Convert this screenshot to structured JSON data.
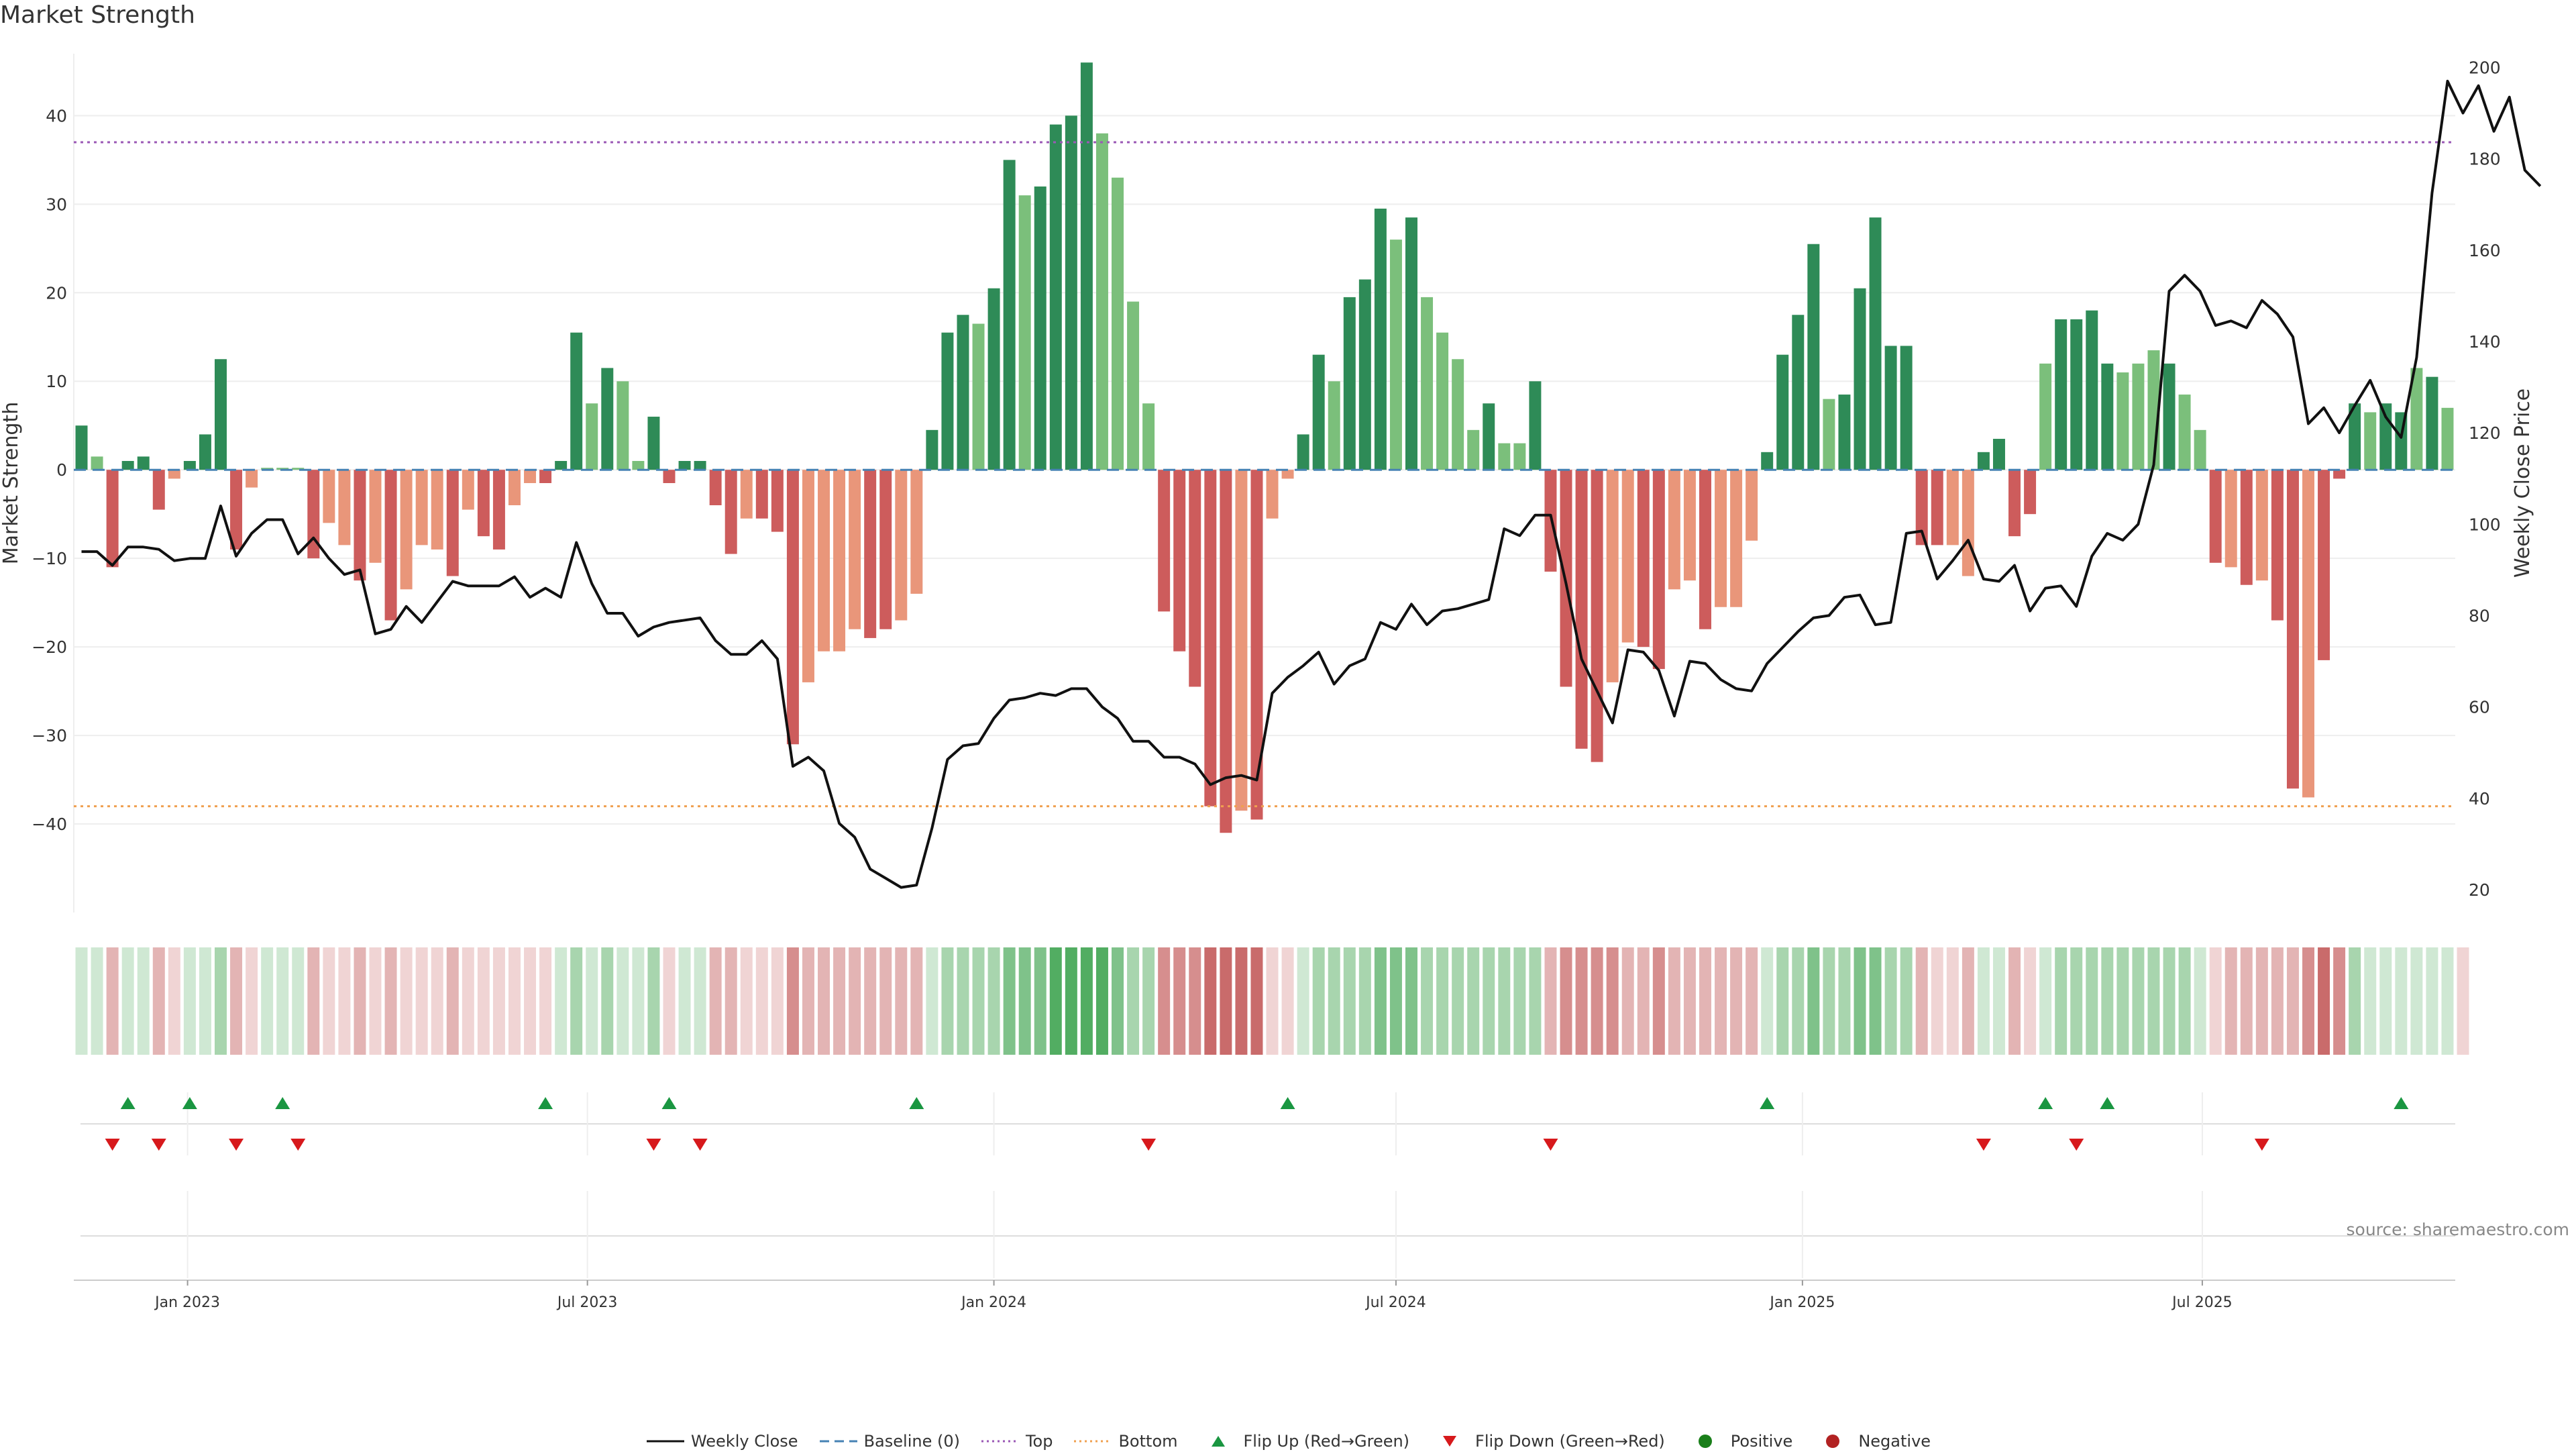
{
  "title": "Market Strength",
  "source": "source: sharemaestro.com",
  "chart_data": {
    "type": "bar",
    "title": "Market Strength",
    "ylabel": "Market Strength",
    "y2label": "Weekly Close Price",
    "ylim": [
      -50,
      47
    ],
    "y2lim": [
      15,
      203
    ],
    "yticks": [
      -40,
      -30,
      -20,
      -10,
      0,
      10,
      20,
      30,
      40
    ],
    "y2ticks": [
      20,
      40,
      60,
      80,
      100,
      120,
      140,
      160,
      180,
      200
    ],
    "x_start": "2022-11-14",
    "x_end": "2025-11-03",
    "x_tick_labels": [
      "Jan 2023",
      "Jul 2023",
      "Jan 2024",
      "Jul 2024",
      "Jan 2025",
      "Jul 2025"
    ],
    "x_tick_dates": [
      "2023-01-01",
      "2023-07-01",
      "2024-01-01",
      "2024-07-01",
      "2025-01-01",
      "2025-07-01"
    ],
    "top_level": 37,
    "bottom_level": -38,
    "baseline": 0,
    "colors": {
      "strong_up": "#2e8b57",
      "weak_up": "#7bbf7b",
      "strong_down": "#cd5c5c",
      "weak_down": "#e9967a",
      "close": "#111111",
      "baseline": "#4682b4",
      "top": "#9b59b6",
      "bottom": "#f0a050",
      "flip_up": "#1a9641",
      "flip_down": "#d7191c",
      "positive": "#1a7f1a",
      "negative": "#b22222"
    },
    "series": [
      {
        "name": "Market Strength",
        "values": [
          5,
          1.5,
          -11,
          1,
          1.5,
          -4.5,
          -1,
          1,
          4,
          12.5,
          -9,
          -2,
          0,
          0,
          0,
          -10,
          -6,
          -8.5,
          -12.5,
          -10.5,
          -17,
          -13.5,
          -8.5,
          -9,
          -12,
          -4.5,
          -7.5,
          -9,
          -4,
          -1.5,
          -1.5,
          1,
          15.5,
          7.5,
          11.5,
          10,
          1,
          6,
          -1.5,
          1,
          1,
          -4,
          -9.5,
          -5.5,
          -5.5,
          -7,
          -31,
          -24,
          -20.5,
          -20.5,
          -18,
          -19,
          -18,
          -17,
          -14,
          4.5,
          15.5,
          17.5,
          16.5,
          20.5,
          35,
          31,
          32,
          39,
          40,
          46,
          38,
          33,
          19,
          7.5,
          -16,
          -20.5,
          -24.5,
          -38,
          -41,
          -38.5,
          -39.5,
          -5.5,
          -1,
          4,
          13,
          10,
          19.5,
          21.5,
          29.5,
          26,
          28.5,
          19.5,
          15.5,
          12.5,
          4.5,
          7.5,
          3,
          3,
          10,
          -11.5,
          -24.5,
          -31.5,
          -33,
          -24,
          -19.5,
          -20,
          -22.5,
          -13.5,
          -12.5,
          -18,
          -15.5,
          -15.5,
          -8,
          2,
          13,
          17.5,
          25.5,
          8,
          8.5,
          20.5,
          28.5,
          14,
          14,
          -8.5,
          -8.5,
          -8.5,
          -12,
          2,
          3.5,
          -7.5,
          -5,
          12,
          17,
          17,
          18,
          12,
          11,
          12,
          13.5,
          12,
          8.5,
          4.5,
          -10.5,
          -11,
          -13,
          -12.5,
          -17,
          -36,
          -37,
          -21.5,
          -1,
          7.5,
          6.5,
          7.5,
          6.5,
          11.5,
          10.5,
          7
        ],
        "styles": [
          "S",
          "W",
          "S",
          "S",
          "S",
          "S",
          "W",
          "S",
          "S",
          "S",
          "S",
          "W",
          "W",
          "W",
          "W",
          "S",
          "W",
          "W",
          "S",
          "W",
          "S",
          "W",
          "W",
          "W",
          "S",
          "W",
          "S",
          "S",
          "W",
          "W",
          "S",
          "S",
          "S",
          "W",
          "S",
          "W",
          "W",
          "S",
          "S",
          "S",
          "S",
          "S",
          "S",
          "W",
          "S",
          "S",
          "S",
          "W",
          "W",
          "W",
          "W",
          "S",
          "S",
          "W",
          "W",
          "S",
          "S",
          "S",
          "W",
          "S",
          "S",
          "W",
          "S",
          "S",
          "S",
          "S",
          "W",
          "W",
          "W",
          "W",
          "S",
          "S",
          "S",
          "S",
          "S",
          "W",
          "S",
          "W",
          "W",
          "S",
          "S",
          "W",
          "S",
          "S",
          "S",
          "W",
          "S",
          "W",
          "W",
          "W",
          "W",
          "S",
          "W",
          "W",
          "S",
          "S",
          "S",
          "S",
          "S",
          "W",
          "W",
          "S",
          "S",
          "W",
          "W",
          "S",
          "W",
          "W",
          "W",
          "S",
          "S",
          "S",
          "S",
          "W",
          "S",
          "S",
          "S",
          "S",
          "S",
          "S",
          "S",
          "W",
          "W",
          "S",
          "S",
          "S",
          "S",
          "W",
          "S",
          "S",
          "S",
          "S",
          "W",
          "W",
          "W",
          "S",
          "W",
          "W",
          "S",
          "W",
          "S",
          "W",
          "S",
          "S",
          "W",
          "S",
          "S",
          "S",
          "W",
          "S",
          "S",
          "W",
          "S",
          "W",
          "S",
          "W",
          "W"
        ]
      },
      {
        "name": "Weekly Close",
        "values": [
          94,
          94,
          91,
          95,
          95,
          94.5,
          92,
          92.5,
          92.5,
          104,
          93,
          98,
          101,
          101,
          93.5,
          97,
          92.5,
          89,
          90,
          76,
          77,
          82,
          78.5,
          83,
          87.5,
          86.5,
          86.5,
          86.5,
          88.5,
          84,
          86,
          84,
          96,
          87,
          80.5,
          80.5,
          75.5,
          77.5,
          78.5,
          79,
          79.5,
          74.5,
          71.5,
          71.5,
          74.5,
          70.5,
          47,
          49,
          46,
          34.5,
          31.5,
          24.5,
          22.5,
          20.5,
          21,
          33.5,
          48.5,
          51.5,
          52,
          57.5,
          61.5,
          62,
          63,
          62.5,
          64,
          64,
          60,
          57.5,
          52.5,
          52.5,
          49,
          49,
          47.5,
          43,
          44.5,
          45,
          44,
          63,
          66.5,
          69,
          72,
          65,
          69,
          70.5,
          78.5,
          77,
          82.5,
          78,
          81,
          81.5,
          82.5,
          83.5,
          99,
          97.5,
          102,
          102,
          87,
          70.5,
          63.5,
          56.5,
          72.5,
          72,
          68,
          58,
          70,
          69.5,
          66,
          64,
          63.5,
          69.5,
          73,
          76.5,
          79.5,
          80,
          84,
          84.5,
          78,
          78.5,
          98,
          98.5,
          88,
          92,
          96.5,
          88,
          87.5,
          91,
          81,
          86,
          86.5,
          82,
          93,
          98,
          96.5,
          100,
          113,
          151,
          154.5,
          151,
          143.5,
          144.5,
          143,
          149,
          146,
          141,
          122,
          125.5,
          120,
          126,
          131.5,
          123.5,
          119,
          136.5,
          172.5,
          197,
          190,
          196,
          186,
          193.5,
          177.5,
          174
        ],
        "type": "line"
      }
    ],
    "heat": [
      1,
      1,
      2,
      1,
      1,
      2,
      1,
      1,
      1,
      2,
      2,
      1,
      1,
      1,
      1,
      2,
      1,
      1,
      2,
      1,
      2,
      1,
      1,
      1,
      2,
      1,
      1,
      1,
      1,
      1,
      1,
      1,
      2,
      1,
      2,
      1,
      1,
      2,
      1,
      1,
      1,
      2,
      2,
      1,
      1,
      1,
      3,
      2,
      2,
      2,
      2,
      2,
      2,
      2,
      2,
      1,
      2,
      2,
      2,
      2,
      3,
      3,
      3,
      4,
      4,
      4,
      4,
      3,
      2,
      2,
      3,
      3,
      3,
      4,
      4,
      4,
      4,
      1,
      1,
      1,
      2,
      2,
      2,
      2,
      3,
      3,
      3,
      2,
      2,
      2,
      2,
      2,
      2,
      2,
      2,
      2,
      3,
      3,
      3,
      3,
      2,
      2,
      3,
      2,
      2,
      2,
      2,
      2,
      2,
      1,
      2,
      2,
      3,
      2,
      2,
      3,
      3,
      2,
      2,
      2,
      1,
      1,
      2,
      1,
      1,
      2,
      1,
      1,
      2,
      2,
      2,
      2,
      2,
      2,
      2,
      2,
      2,
      1,
      1,
      2,
      2,
      2,
      2,
      2,
      3,
      4,
      3,
      2,
      1,
      1,
      1,
      1,
      1,
      1,
      1
    ],
    "flip_up_weeks": [
      3,
      7,
      13,
      30,
      38,
      54,
      78,
      109,
      127,
      131,
      150
    ],
    "flip_down_weeks": [
      2,
      5,
      10,
      14,
      37,
      40,
      69,
      95,
      123,
      129,
      141
    ]
  },
  "legend": [
    {
      "label": "Weekly Close",
      "symbol": "line-solid",
      "color": "#111111"
    },
    {
      "label": "Baseline (0)",
      "symbol": "line-dashed",
      "color": "#4682b4"
    },
    {
      "label": "Top",
      "symbol": "line-dotted",
      "color": "#9b59b6"
    },
    {
      "label": "Bottom",
      "symbol": "line-dotted",
      "color": "#f0a050"
    },
    {
      "label": "Flip Up (Red→Green)",
      "symbol": "triangle-up",
      "color": "#1a9641"
    },
    {
      "label": "Flip Down (Green→Red)",
      "symbol": "triangle-down",
      "color": "#d7191c"
    },
    {
      "label": "Positive",
      "symbol": "circle",
      "color": "#1a7f1a"
    },
    {
      "label": "Negative",
      "symbol": "circle",
      "color": "#b22222"
    }
  ]
}
